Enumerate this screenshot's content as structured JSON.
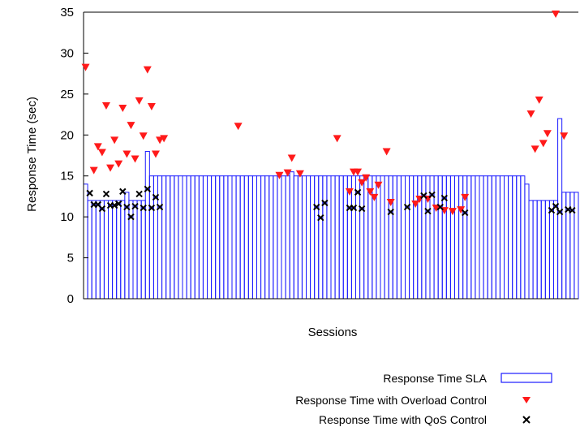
{
  "chart_data": {
    "type": "bar",
    "title": "",
    "xlabel": "Sessions",
    "ylabel": "Response Time (sec)",
    "ylim": [
      0,
      35
    ],
    "yticks": [
      0,
      5,
      10,
      15,
      20,
      25,
      30,
      35
    ],
    "grid": false,
    "legend_position": "bottom-right",
    "colors": {
      "sla": "#1a1aff",
      "overload": "#ff1a1a",
      "qos": "#000000"
    },
    "legend": [
      {
        "label": "Response Time SLA",
        "marker": "bar"
      },
      {
        "label": "Response Time with Overload Control",
        "marker": "triangle"
      },
      {
        "label": "Response Time with QoS Control",
        "marker": "x"
      }
    ],
    "sessions": 120,
    "series": [
      {
        "name": "Response Time SLA",
        "values": [
          14,
          12,
          12,
          12,
          12,
          12,
          12,
          12,
          12,
          12,
          13,
          12,
          12,
          12,
          12,
          18,
          15,
          15,
          15,
          15,
          15,
          15,
          15,
          15,
          15,
          15,
          15,
          15,
          15,
          15,
          15,
          15,
          15,
          15,
          15,
          15,
          15,
          15,
          15,
          15,
          15,
          15,
          15,
          15,
          15,
          15,
          15,
          15,
          15,
          15,
          15.5,
          15,
          15,
          15,
          15,
          15,
          15,
          15,
          15,
          15,
          15,
          15,
          15,
          15,
          15,
          15,
          15,
          15,
          15,
          15,
          15,
          15,
          15,
          15,
          15,
          15,
          15,
          15,
          15,
          15,
          15,
          15,
          15,
          15,
          15,
          15,
          15,
          15,
          15,
          15,
          15,
          15,
          15,
          15,
          15,
          15,
          15,
          15,
          15,
          15,
          15,
          15,
          15,
          15,
          15,
          15,
          15,
          14,
          12,
          12,
          12,
          12,
          12,
          12,
          12,
          22,
          13,
          13,
          13,
          13
        ]
      },
      {
        "name": "Response Time with Overload Control",
        "points": [
          [
            0,
            28.3
          ],
          [
            2,
            15.7
          ],
          [
            3,
            18.6
          ],
          [
            4,
            17.9
          ],
          [
            5,
            23.6
          ],
          [
            6,
            16.0
          ],
          [
            7,
            19.4
          ],
          [
            8,
            16.5
          ],
          [
            9,
            23.3
          ],
          [
            10,
            17.7
          ],
          [
            11,
            21.2
          ],
          [
            12,
            17.1
          ],
          [
            13,
            24.2
          ],
          [
            14,
            19.9
          ],
          [
            15,
            28.0
          ],
          [
            16,
            23.5
          ],
          [
            17,
            17.7
          ],
          [
            18,
            19.4
          ],
          [
            19,
            19.6
          ],
          [
            37,
            21.1
          ],
          [
            47,
            15.1
          ],
          [
            49,
            15.4
          ],
          [
            50,
            17.2
          ],
          [
            52,
            15.3
          ],
          [
            61,
            19.6
          ],
          [
            64,
            13.1
          ],
          [
            65,
            15.5
          ],
          [
            66,
            15.5
          ],
          [
            67,
            14.2
          ],
          [
            68,
            14.8
          ],
          [
            69,
            13.1
          ],
          [
            70,
            12.4
          ],
          [
            71,
            13.9
          ],
          [
            73,
            18.0
          ],
          [
            74,
            11.8
          ],
          [
            80,
            11.6
          ],
          [
            81,
            12.2
          ],
          [
            83,
            12.2
          ],
          [
            85,
            11.1
          ],
          [
            87,
            10.8
          ],
          [
            89,
            10.7
          ],
          [
            91,
            10.9
          ],
          [
            92,
            12.4
          ],
          [
            108,
            22.6
          ],
          [
            109,
            18.3
          ],
          [
            110,
            24.3
          ],
          [
            111,
            19.0
          ],
          [
            112,
            20.2
          ],
          [
            114,
            34.8
          ],
          [
            116,
            19.9
          ]
        ]
      },
      {
        "name": "Response Time with QoS Control",
        "points": [
          [
            1,
            12.9
          ],
          [
            2,
            11.5
          ],
          [
            3,
            11.5
          ],
          [
            4,
            11.0
          ],
          [
            5,
            12.8
          ],
          [
            6,
            11.4
          ],
          [
            7,
            11.4
          ],
          [
            8,
            11.6
          ],
          [
            9,
            13.1
          ],
          [
            10,
            11.2
          ],
          [
            11,
            10.0
          ],
          [
            12,
            11.3
          ],
          [
            13,
            12.8
          ],
          [
            14,
            11.1
          ],
          [
            15,
            13.4
          ],
          [
            16,
            11.1
          ],
          [
            17,
            12.4
          ],
          [
            18,
            11.2
          ],
          [
            56,
            11.2
          ],
          [
            57,
            9.9
          ],
          [
            58,
            11.7
          ],
          [
            64,
            11.1
          ],
          [
            65,
            11.1
          ],
          [
            66,
            13.0
          ],
          [
            67,
            11.0
          ],
          [
            74,
            10.6
          ],
          [
            78,
            11.2
          ],
          [
            82,
            12.6
          ],
          [
            83,
            10.7
          ],
          [
            84,
            12.7
          ],
          [
            86,
            11.2
          ],
          [
            87,
            12.3
          ],
          [
            92,
            10.5
          ],
          [
            113,
            10.8
          ],
          [
            114,
            11.3
          ],
          [
            115,
            10.6
          ],
          [
            117,
            10.9
          ],
          [
            118,
            10.8
          ]
        ]
      }
    ]
  }
}
